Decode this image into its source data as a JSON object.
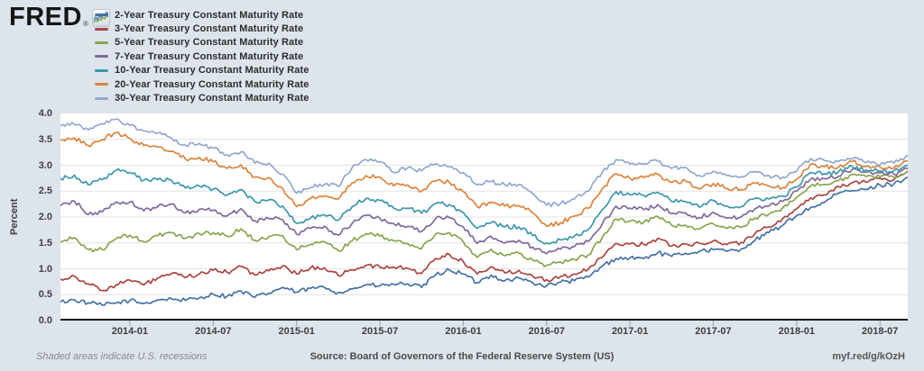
{
  "header": {
    "logo_text": "FRED",
    "registered_mark": "®",
    "logo_icon": "fred-sparkline-icon"
  },
  "footer": {
    "note": "Shaded areas indicate U.S. recessions",
    "source": "Source: Board of Governors of the Federal Reserve System (US)",
    "permalink": "myf.red/g/kOzH"
  },
  "colors": {
    "background": "#dde4ec",
    "plot_background": "#ffffff",
    "gridline": "#e4e4e4",
    "axis_line": "#1a1a1a",
    "tick": "#8fa0b5",
    "label_text": "#404040"
  },
  "chart_data": {
    "type": "line",
    "title": "",
    "ylabel": "Percent",
    "xlabel": "",
    "ylim": [
      0.0,
      4.0
    ],
    "yticks": [
      "4.0",
      "3.5",
      "3.0",
      "2.5",
      "2.0",
      "1.5",
      "1.0",
      "0.5",
      "0.0"
    ],
    "xticks": [
      "2014-01",
      "2014-07",
      "2015-01",
      "2015-07",
      "2016-01",
      "2016-07",
      "2017-01",
      "2017-07",
      "2018-01",
      "2018-07"
    ],
    "grid": "horizontal",
    "legend_position": "top-left",
    "x_unit": "month",
    "x": [
      "2013-08",
      "2013-09",
      "2013-10",
      "2013-11",
      "2013-12",
      "2014-01",
      "2014-02",
      "2014-03",
      "2014-04",
      "2014-05",
      "2014-06",
      "2014-07",
      "2014-08",
      "2014-09",
      "2014-10",
      "2014-11",
      "2014-12",
      "2015-01",
      "2015-02",
      "2015-03",
      "2015-04",
      "2015-05",
      "2015-06",
      "2015-07",
      "2015-08",
      "2015-09",
      "2015-10",
      "2015-11",
      "2015-12",
      "2016-01",
      "2016-02",
      "2016-03",
      "2016-04",
      "2016-05",
      "2016-06",
      "2016-07",
      "2016-08",
      "2016-09",
      "2016-10",
      "2016-11",
      "2016-12",
      "2017-01",
      "2017-02",
      "2017-03",
      "2017-04",
      "2017-05",
      "2017-06",
      "2017-07",
      "2017-08",
      "2017-09",
      "2017-10",
      "2017-11",
      "2017-12",
      "2018-01",
      "2018-02",
      "2018-03",
      "2018-04",
      "2018-05",
      "2018-06",
      "2018-07",
      "2018-08",
      "2018-09"
    ],
    "series": [
      {
        "name": "2-Year Treasury Constant Maturity Rate",
        "color": "#4572a7",
        "values": [
          0.36,
          0.4,
          0.34,
          0.3,
          0.34,
          0.39,
          0.33,
          0.4,
          0.42,
          0.39,
          0.44,
          0.51,
          0.47,
          0.57,
          0.45,
          0.53,
          0.64,
          0.55,
          0.62,
          0.64,
          0.54,
          0.61,
          0.69,
          0.67,
          0.7,
          0.71,
          0.64,
          0.88,
          0.98,
          0.9,
          0.73,
          0.88,
          0.77,
          0.82,
          0.73,
          0.67,
          0.74,
          0.77,
          0.84,
          1.05,
          1.2,
          1.21,
          1.2,
          1.31,
          1.24,
          1.3,
          1.34,
          1.37,
          1.34,
          1.38,
          1.55,
          1.7,
          1.84,
          2.03,
          2.18,
          2.28,
          2.46,
          2.51,
          2.53,
          2.62,
          2.64,
          2.77
        ]
      },
      {
        "name": "3-Year Treasury Constant Maturity Rate",
        "color": "#aa4643",
        "values": [
          0.8,
          0.86,
          0.71,
          0.58,
          0.69,
          0.78,
          0.69,
          0.82,
          0.91,
          0.83,
          0.9,
          0.97,
          0.93,
          1.05,
          0.88,
          0.96,
          1.06,
          0.9,
          1.02,
          1.02,
          0.87,
          0.98,
          1.07,
          1.03,
          1.03,
          1.01,
          0.91,
          1.2,
          1.28,
          1.14,
          0.9,
          1.04,
          0.92,
          0.97,
          0.86,
          0.79,
          0.85,
          0.9,
          0.99,
          1.22,
          1.49,
          1.48,
          1.47,
          1.59,
          1.44,
          1.48,
          1.49,
          1.54,
          1.47,
          1.51,
          1.68,
          1.81,
          1.97,
          2.16,
          2.37,
          2.43,
          2.59,
          2.66,
          2.67,
          2.75,
          2.72,
          2.88
        ]
      },
      {
        "name": "5-Year Treasury Constant Maturity Rate",
        "color": "#89a54e",
        "values": [
          1.52,
          1.6,
          1.37,
          1.37,
          1.58,
          1.65,
          1.52,
          1.64,
          1.7,
          1.59,
          1.68,
          1.7,
          1.63,
          1.77,
          1.55,
          1.62,
          1.64,
          1.37,
          1.47,
          1.52,
          1.35,
          1.54,
          1.68,
          1.63,
          1.54,
          1.49,
          1.39,
          1.67,
          1.7,
          1.52,
          1.22,
          1.38,
          1.25,
          1.3,
          1.17,
          1.07,
          1.13,
          1.18,
          1.27,
          1.6,
          1.96,
          1.92,
          1.9,
          2.01,
          1.84,
          1.84,
          1.77,
          1.87,
          1.78,
          1.8,
          1.98,
          2.05,
          2.18,
          2.38,
          2.6,
          2.63,
          2.7,
          2.82,
          2.78,
          2.78,
          2.77,
          2.89
        ]
      },
      {
        "name": "7-Year Treasury Constant Maturity Rate",
        "color": "#80699b",
        "values": [
          2.22,
          2.31,
          2.05,
          2.1,
          2.29,
          2.29,
          2.12,
          2.2,
          2.25,
          2.08,
          2.15,
          2.13,
          2.02,
          2.16,
          1.93,
          1.97,
          1.95,
          1.67,
          1.78,
          1.82,
          1.65,
          1.88,
          2.03,
          1.97,
          1.87,
          1.82,
          1.72,
          1.97,
          1.99,
          1.81,
          1.49,
          1.63,
          1.5,
          1.55,
          1.42,
          1.29,
          1.38,
          1.43,
          1.53,
          1.86,
          2.21,
          2.17,
          2.14,
          2.24,
          2.07,
          2.08,
          1.99,
          2.09,
          1.98,
          2.0,
          2.16,
          2.21,
          2.3,
          2.5,
          2.73,
          2.74,
          2.79,
          2.92,
          2.86,
          2.85,
          2.83,
          2.94
        ]
      },
      {
        "name": "10-Year Treasury Constant Maturity Rate",
        "color": "#3d96ae",
        "values": [
          2.74,
          2.81,
          2.62,
          2.72,
          2.9,
          2.86,
          2.71,
          2.72,
          2.71,
          2.56,
          2.6,
          2.54,
          2.42,
          2.53,
          2.3,
          2.33,
          2.21,
          1.88,
          1.98,
          2.04,
          1.94,
          2.2,
          2.36,
          2.32,
          2.17,
          2.17,
          2.07,
          2.26,
          2.24,
          2.09,
          1.78,
          1.89,
          1.81,
          1.81,
          1.64,
          1.5,
          1.56,
          1.63,
          1.76,
          2.14,
          2.49,
          2.43,
          2.42,
          2.48,
          2.3,
          2.3,
          2.19,
          2.32,
          2.21,
          2.2,
          2.36,
          2.35,
          2.4,
          2.58,
          2.86,
          2.84,
          2.87,
          2.98,
          2.91,
          2.89,
          2.89,
          3.0
        ]
      },
      {
        "name": "20-Year Treasury Constant Maturity Rate",
        "color": "#db843d",
        "values": [
          3.49,
          3.53,
          3.38,
          3.5,
          3.63,
          3.52,
          3.38,
          3.35,
          3.27,
          3.12,
          3.15,
          3.07,
          2.94,
          3.01,
          2.77,
          2.76,
          2.55,
          2.2,
          2.36,
          2.41,
          2.35,
          2.66,
          2.8,
          2.77,
          2.6,
          2.62,
          2.5,
          2.69,
          2.67,
          2.49,
          2.2,
          2.28,
          2.21,
          2.22,
          2.08,
          1.82,
          1.89,
          2.02,
          2.17,
          2.54,
          2.84,
          2.75,
          2.76,
          2.83,
          2.67,
          2.7,
          2.54,
          2.65,
          2.55,
          2.53,
          2.65,
          2.6,
          2.57,
          2.73,
          3.02,
          2.97,
          2.96,
          3.07,
          2.98,
          2.97,
          2.95,
          3.08
        ]
      },
      {
        "name": "30-Year Treasury Constant Maturity Rate",
        "color": "#92a8cd",
        "values": [
          3.76,
          3.79,
          3.68,
          3.8,
          3.89,
          3.77,
          3.66,
          3.62,
          3.52,
          3.39,
          3.42,
          3.33,
          3.2,
          3.26,
          3.04,
          3.04,
          2.83,
          2.46,
          2.57,
          2.63,
          2.59,
          2.96,
          3.11,
          3.07,
          2.86,
          2.95,
          2.89,
          3.03,
          2.97,
          2.86,
          2.62,
          2.68,
          2.62,
          2.63,
          2.45,
          2.23,
          2.26,
          2.35,
          2.5,
          2.86,
          3.11,
          3.02,
          3.03,
          3.08,
          2.94,
          2.96,
          2.8,
          2.88,
          2.8,
          2.78,
          2.88,
          2.8,
          2.77,
          2.88,
          3.13,
          3.09,
          3.07,
          3.13,
          3.05,
          3.01,
          3.04,
          3.19
        ]
      }
    ]
  }
}
